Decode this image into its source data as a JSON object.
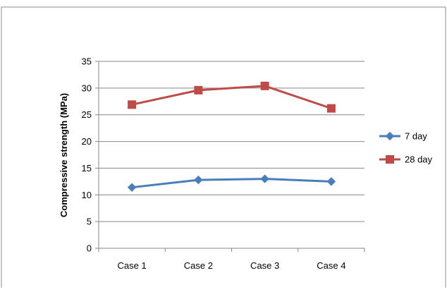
{
  "chart_data": {
    "type": "line",
    "categories": [
      "Case 1",
      "Case 2",
      "Case 3",
      "Case 4"
    ],
    "series": [
      {
        "name": "7 day",
        "values": [
          11.4,
          12.8,
          13.0,
          12.5
        ],
        "color": "#4a7ebb",
        "marker": "diamond"
      },
      {
        "name": "28 day",
        "values": [
          26.9,
          29.6,
          30.4,
          26.2
        ],
        "color": "#be4b48",
        "marker": "square"
      }
    ],
    "title": "",
    "xlabel": "",
    "ylabel": "Compressive strength (MPa)",
    "ylim": [
      0,
      35
    ],
    "yticks": [
      0,
      5,
      10,
      15,
      20,
      25,
      30,
      35
    ],
    "grid": true,
    "legend": "right"
  }
}
